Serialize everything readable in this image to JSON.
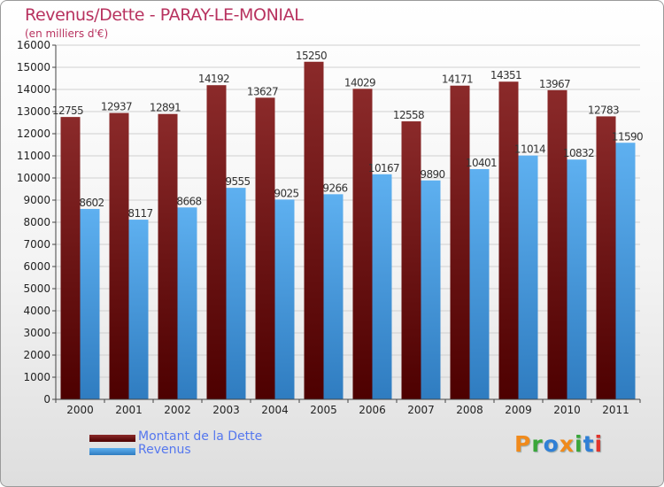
{
  "header": {
    "title": "Revenus/Dette - PARAY-LE-MONIAL",
    "subtitle": "(en milliers d'€)"
  },
  "legend": [
    {
      "label": "Montant de la Dette",
      "color": "#6b0f0f"
    },
    {
      "label": "Revenus",
      "color": "#4aa0e6"
    }
  ],
  "logo": {
    "text": "Proxiti",
    "letters": [
      {
        "ch": "P",
        "color": "#f08a1c"
      },
      {
        "ch": "r",
        "color": "#3aa63a"
      },
      {
        "ch": "o",
        "color": "#2f7fd6"
      },
      {
        "ch": "x",
        "color": "#f08a1c"
      },
      {
        "ch": "i",
        "color": "#3aa63a"
      },
      {
        "ch": "t",
        "color": "#2f7fd6"
      },
      {
        "ch": "i",
        "color": "#e0342c"
      }
    ]
  },
  "chart_data": {
    "type": "bar",
    "title": "Revenus/Dette - PARAY-LE-MONIAL",
    "subtitle": "(en milliers d'€)",
    "categories": [
      "2000",
      "2001",
      "2002",
      "2003",
      "2004",
      "2005",
      "2006",
      "2007",
      "2008",
      "2009",
      "2010",
      "2011"
    ],
    "series": [
      {
        "name": "Montant de la Dette",
        "color": "#7a1a1a",
        "values": [
          12755,
          12937,
          12891,
          14192,
          13627,
          15250,
          14029,
          12558,
          14171,
          14351,
          13967,
          12783
        ]
      },
      {
        "name": "Revenus",
        "color": "#4aa0e6",
        "values": [
          8602,
          8117,
          8668,
          9555,
          9025,
          9266,
          10167,
          9890,
          10401,
          11014,
          10832,
          11590
        ]
      }
    ],
    "ylim": [
      0,
      16000
    ],
    "yticks": [
      0,
      1000,
      2000,
      3000,
      4000,
      5000,
      6000,
      7000,
      8000,
      9000,
      10000,
      11000,
      12000,
      13000,
      14000,
      15000,
      16000
    ],
    "grid": true,
    "legend_position": "bottom-left"
  }
}
